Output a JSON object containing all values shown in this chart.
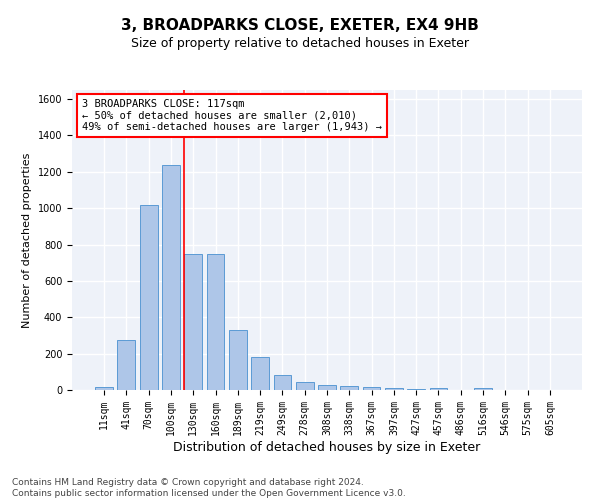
{
  "title1": "3, BROADPARKS CLOSE, EXETER, EX4 9HB",
  "title2": "Size of property relative to detached houses in Exeter",
  "xlabel": "Distribution of detached houses by size in Exeter",
  "ylabel": "Number of detached properties",
  "categories": [
    "11sqm",
    "41sqm",
    "70sqm",
    "100sqm",
    "130sqm",
    "160sqm",
    "189sqm",
    "219sqm",
    "249sqm",
    "278sqm",
    "308sqm",
    "338sqm",
    "367sqm",
    "397sqm",
    "427sqm",
    "457sqm",
    "486sqm",
    "516sqm",
    "546sqm",
    "575sqm",
    "605sqm"
  ],
  "values": [
    15,
    275,
    1020,
    1240,
    750,
    750,
    330,
    180,
    80,
    45,
    30,
    20,
    15,
    10,
    5,
    10,
    2,
    10,
    2,
    2,
    2
  ],
  "bar_color": "#aec6e8",
  "bar_edge_color": "#5b9bd5",
  "bar_width": 0.8,
  "annotation_text": "3 BROADPARKS CLOSE: 117sqm\n← 50% of detached houses are smaller (2,010)\n49% of semi-detached houses are larger (1,943) →",
  "annotation_box_color": "white",
  "annotation_box_edge_color": "red",
  "ylim": [
    0,
    1650
  ],
  "yticks": [
    0,
    200,
    400,
    600,
    800,
    1000,
    1200,
    1400,
    1600
  ],
  "footer_text": "Contains HM Land Registry data © Crown copyright and database right 2024.\nContains public sector information licensed under the Open Government Licence v3.0.",
  "background_color": "#eef2f9",
  "grid_color": "white",
  "title1_fontsize": 11,
  "title2_fontsize": 9,
  "xlabel_fontsize": 9,
  "ylabel_fontsize": 8,
  "tick_fontsize": 7,
  "annotation_fontsize": 7.5,
  "footer_fontsize": 6.5
}
